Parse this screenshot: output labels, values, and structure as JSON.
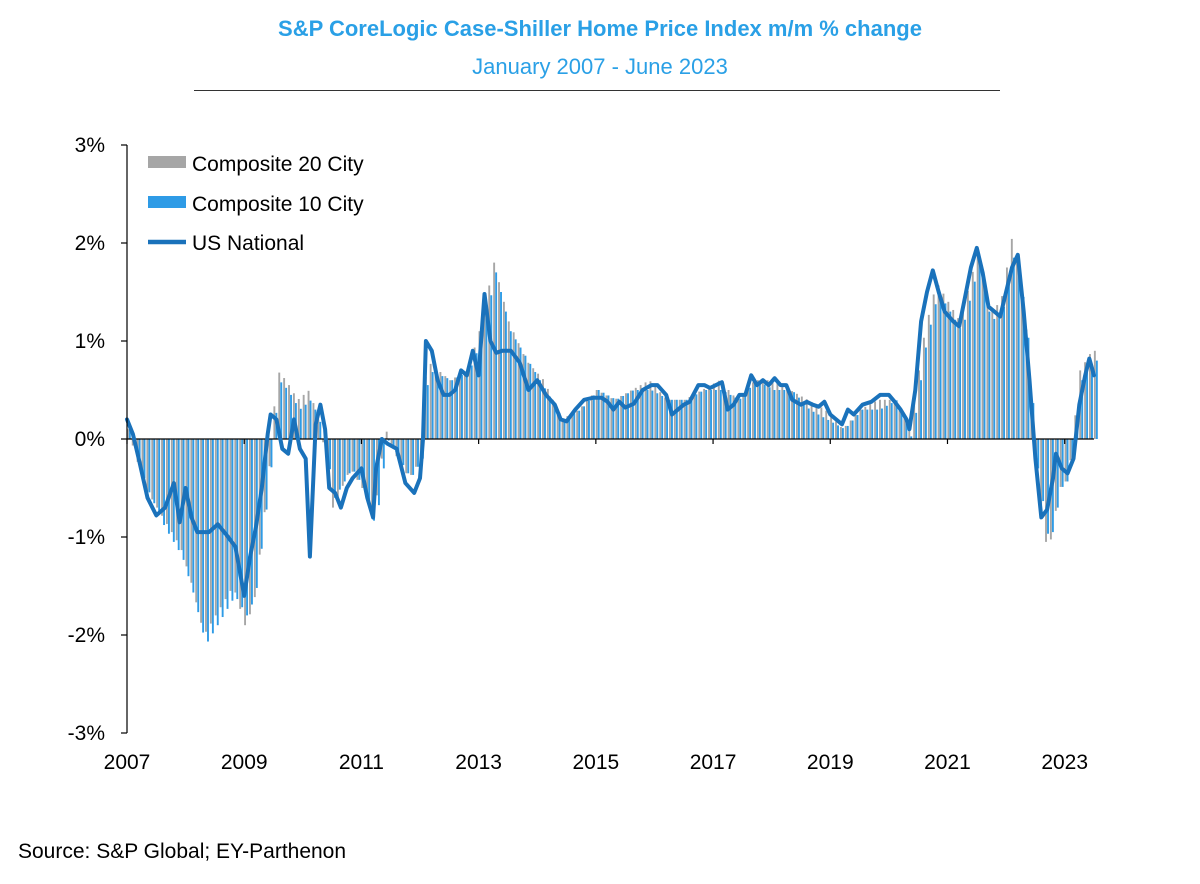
{
  "header": {
    "title": "S&P CoreLogic Case-Shiller Home Price Index m/m % change",
    "subtitle": "January 2007 - June 2023"
  },
  "footer": {
    "source": "Source: S&P Global; EY-Parthenon"
  },
  "colors": {
    "composite20": "#a6a6a6",
    "composite10": "#2e9be6",
    "national": "#1a72bb",
    "text": "#000000",
    "title": "#2aa0e6"
  },
  "chart_data": {
    "type": "bar",
    "ylim": [
      -3,
      3
    ],
    "xlim": [
      2007.0,
      2023.5
    ],
    "y_ticks": [
      {
        "value": 3,
        "label": "3%"
      },
      {
        "value": 2,
        "label": "2%"
      },
      {
        "value": 1,
        "label": "1%"
      },
      {
        "value": 0,
        "label": "0%"
      },
      {
        "value": -1,
        "label": "-1%"
      },
      {
        "value": -2,
        "label": "-2%"
      },
      {
        "value": -3,
        "label": "-3%"
      }
    ],
    "x_ticks": [
      {
        "value": 2007,
        "label": "2007"
      },
      {
        "value": 2009,
        "label": "2009"
      },
      {
        "value": 2011,
        "label": "2011"
      },
      {
        "value": 2013,
        "label": "2013"
      },
      {
        "value": 2015,
        "label": "2015"
      },
      {
        "value": 2017,
        "label": "2017"
      },
      {
        "value": 2019,
        "label": "2019"
      },
      {
        "value": 2021,
        "label": "2021"
      },
      {
        "value": 2023,
        "label": "2023"
      }
    ],
    "legend_position": "top-left",
    "series": [
      {
        "name": "Composite 20 City",
        "kind": "bar",
        "color": "#a6a6a6",
        "anchors": [
          [
            2007.0,
            0.1
          ],
          [
            2007.3,
            -0.5
          ],
          [
            2007.6,
            -0.8
          ],
          [
            2007.9,
            -1.1
          ],
          [
            2008.1,
            -1.5
          ],
          [
            2008.3,
            -2.0
          ],
          [
            2008.5,
            -1.8
          ],
          [
            2008.8,
            -1.5
          ],
          [
            2009.0,
            -1.9
          ],
          [
            2009.15,
            -1.7
          ],
          [
            2009.4,
            -0.4
          ],
          [
            2009.55,
            0.7
          ],
          [
            2009.7,
            0.6
          ],
          [
            2009.9,
            0.4
          ],
          [
            2010.1,
            0.5
          ],
          [
            2010.3,
            0.1
          ],
          [
            2010.5,
            -0.7
          ],
          [
            2010.8,
            -0.3
          ],
          [
            2011.0,
            -0.5
          ],
          [
            2011.2,
            -0.8
          ],
          [
            2011.4,
            0.1
          ],
          [
            2011.6,
            -0.2
          ],
          [
            2011.8,
            -0.4
          ],
          [
            2012.0,
            -0.2
          ],
          [
            2012.1,
            0.8
          ],
          [
            2012.5,
            0.6
          ],
          [
            2012.8,
            0.7
          ],
          [
            2013.0,
            1.1
          ],
          [
            2013.25,
            1.8
          ],
          [
            2013.5,
            1.2
          ],
          [
            2013.8,
            0.8
          ],
          [
            2014.1,
            0.6
          ],
          [
            2014.4,
            0.2
          ],
          [
            2014.7,
            0.3
          ],
          [
            2015.0,
            0.5
          ],
          [
            2015.3,
            0.4
          ],
          [
            2015.6,
            0.5
          ],
          [
            2015.9,
            0.6
          ],
          [
            2016.2,
            0.4
          ],
          [
            2016.5,
            0.4
          ],
          [
            2016.8,
            0.5
          ],
          [
            2017.1,
            0.6
          ],
          [
            2017.4,
            0.4
          ],
          [
            2017.7,
            0.6
          ],
          [
            2018.0,
            0.6
          ],
          [
            2018.3,
            0.5
          ],
          [
            2018.6,
            0.4
          ],
          [
            2018.9,
            0.3
          ],
          [
            2019.2,
            0.1
          ],
          [
            2019.5,
            0.3
          ],
          [
            2019.8,
            0.4
          ],
          [
            2020.1,
            0.4
          ],
          [
            2020.35,
            0.1
          ],
          [
            2020.6,
            1.1
          ],
          [
            2020.8,
            1.6
          ],
          [
            2021.0,
            1.4
          ],
          [
            2021.2,
            1.2
          ],
          [
            2021.5,
            1.9
          ],
          [
            2021.7,
            1.3
          ],
          [
            2021.9,
            1.4
          ],
          [
            2022.1,
            2.1
          ],
          [
            2022.3,
            1.4
          ],
          [
            2022.5,
            -0.3
          ],
          [
            2022.7,
            -1.2
          ],
          [
            2022.9,
            -0.5
          ],
          [
            2023.05,
            -0.4
          ],
          [
            2023.25,
            0.7
          ],
          [
            2023.45,
            0.9
          ]
        ]
      },
      {
        "name": "Composite 10 City",
        "kind": "bar",
        "color": "#2e9be6",
        "anchors": [
          [
            2007.0,
            0.1
          ],
          [
            2007.3,
            -0.5
          ],
          [
            2007.6,
            -0.9
          ],
          [
            2007.9,
            -1.2
          ],
          [
            2008.1,
            -1.6
          ],
          [
            2008.3,
            -2.1
          ],
          [
            2008.5,
            -1.9
          ],
          [
            2008.8,
            -1.6
          ],
          [
            2009.0,
            -1.8
          ],
          [
            2009.15,
            -1.6
          ],
          [
            2009.4,
            -0.4
          ],
          [
            2009.55,
            0.6
          ],
          [
            2009.7,
            0.5
          ],
          [
            2009.9,
            0.3
          ],
          [
            2010.1,
            0.4
          ],
          [
            2010.3,
            0.1
          ],
          [
            2010.5,
            -0.6
          ],
          [
            2010.8,
            -0.3
          ],
          [
            2011.0,
            -0.5
          ],
          [
            2011.2,
            -0.9
          ],
          [
            2011.4,
            0.0
          ],
          [
            2011.6,
            -0.2
          ],
          [
            2011.8,
            -0.4
          ],
          [
            2012.0,
            -0.2
          ],
          [
            2012.1,
            0.7
          ],
          [
            2012.5,
            0.6
          ],
          [
            2012.8,
            0.7
          ],
          [
            2013.0,
            1.0
          ],
          [
            2013.25,
            1.7
          ],
          [
            2013.5,
            1.1
          ],
          [
            2013.8,
            0.8
          ],
          [
            2014.1,
            0.5
          ],
          [
            2014.4,
            0.2
          ],
          [
            2014.7,
            0.3
          ],
          [
            2015.0,
            0.5
          ],
          [
            2015.3,
            0.4
          ],
          [
            2015.6,
            0.5
          ],
          [
            2015.9,
            0.5
          ],
          [
            2016.2,
            0.4
          ],
          [
            2016.5,
            0.4
          ],
          [
            2016.8,
            0.5
          ],
          [
            2017.1,
            0.5
          ],
          [
            2017.4,
            0.4
          ],
          [
            2017.7,
            0.6
          ],
          [
            2018.0,
            0.5
          ],
          [
            2018.3,
            0.5
          ],
          [
            2018.6,
            0.3
          ],
          [
            2018.9,
            0.2
          ],
          [
            2019.2,
            0.1
          ],
          [
            2019.5,
            0.3
          ],
          [
            2019.8,
            0.3
          ],
          [
            2020.1,
            0.4
          ],
          [
            2020.35,
            0.0
          ],
          [
            2020.6,
            1.0
          ],
          [
            2020.8,
            1.5
          ],
          [
            2021.0,
            1.3
          ],
          [
            2021.2,
            1.1
          ],
          [
            2021.5,
            1.8
          ],
          [
            2021.7,
            1.2
          ],
          [
            2021.9,
            1.3
          ],
          [
            2022.1,
            1.9
          ],
          [
            2022.3,
            1.3
          ],
          [
            2022.5,
            -0.3
          ],
          [
            2022.7,
            -1.1
          ],
          [
            2022.9,
            -0.5
          ],
          [
            2023.05,
            -0.4
          ],
          [
            2023.25,
            0.6
          ],
          [
            2023.45,
            0.8
          ]
        ]
      },
      {
        "name": "US National",
        "kind": "line",
        "color": "#1a72bb",
        "points": [
          [
            2007.0,
            0.2
          ],
          [
            2007.1,
            0.05
          ],
          [
            2007.2,
            -0.2
          ],
          [
            2007.35,
            -0.6
          ],
          [
            2007.5,
            -0.78
          ],
          [
            2007.65,
            -0.7
          ],
          [
            2007.8,
            -0.45
          ],
          [
            2007.9,
            -0.85
          ],
          [
            2008.0,
            -0.5
          ],
          [
            2008.1,
            -0.8
          ],
          [
            2008.2,
            -0.95
          ],
          [
            2008.4,
            -0.95
          ],
          [
            2008.55,
            -0.87
          ],
          [
            2008.7,
            -0.98
          ],
          [
            2008.85,
            -1.1
          ],
          [
            2009.0,
            -1.6
          ],
          [
            2009.1,
            -1.2
          ],
          [
            2009.2,
            -0.9
          ],
          [
            2009.3,
            -0.5
          ],
          [
            2009.4,
            0.05
          ],
          [
            2009.45,
            0.25
          ],
          [
            2009.55,
            0.2
          ],
          [
            2009.65,
            -0.1
          ],
          [
            2009.75,
            -0.15
          ],
          [
            2009.85,
            0.2
          ],
          [
            2009.95,
            -0.1
          ],
          [
            2010.05,
            -0.2
          ],
          [
            2010.12,
            -1.2
          ],
          [
            2010.22,
            0.15
          ],
          [
            2010.3,
            0.35
          ],
          [
            2010.38,
            0.1
          ],
          [
            2010.45,
            -0.5
          ],
          [
            2010.55,
            -0.55
          ],
          [
            2010.65,
            -0.7
          ],
          [
            2010.75,
            -0.5
          ],
          [
            2010.85,
            -0.4
          ],
          [
            2011.0,
            -0.3
          ],
          [
            2011.1,
            -0.6
          ],
          [
            2011.2,
            -0.8
          ],
          [
            2011.25,
            -0.3
          ],
          [
            2011.35,
            0.0
          ],
          [
            2011.45,
            -0.05
          ],
          [
            2011.6,
            -0.1
          ],
          [
            2011.75,
            -0.45
          ],
          [
            2011.9,
            -0.55
          ],
          [
            2012.0,
            -0.4
          ],
          [
            2012.05,
            0.0
          ],
          [
            2012.1,
            1.0
          ],
          [
            2012.2,
            0.9
          ],
          [
            2012.3,
            0.6
          ],
          [
            2012.4,
            0.45
          ],
          [
            2012.5,
            0.45
          ],
          [
            2012.6,
            0.5
          ],
          [
            2012.7,
            0.7
          ],
          [
            2012.8,
            0.65
          ],
          [
            2012.9,
            0.9
          ],
          [
            2013.0,
            0.65
          ],
          [
            2013.1,
            1.48
          ],
          [
            2013.2,
            1.0
          ],
          [
            2013.3,
            0.88
          ],
          [
            2013.4,
            0.9
          ],
          [
            2013.55,
            0.9
          ],
          [
            2013.7,
            0.78
          ],
          [
            2013.85,
            0.5
          ],
          [
            2014.0,
            0.6
          ],
          [
            2014.15,
            0.45
          ],
          [
            2014.3,
            0.35
          ],
          [
            2014.4,
            0.2
          ],
          [
            2014.5,
            0.18
          ],
          [
            2014.65,
            0.3
          ],
          [
            2014.8,
            0.4
          ],
          [
            2014.95,
            0.42
          ],
          [
            2015.1,
            0.42
          ],
          [
            2015.2,
            0.38
          ],
          [
            2015.3,
            0.3
          ],
          [
            2015.4,
            0.38
          ],
          [
            2015.5,
            0.32
          ],
          [
            2015.65,
            0.36
          ],
          [
            2015.8,
            0.5
          ],
          [
            2015.95,
            0.55
          ],
          [
            2016.05,
            0.55
          ],
          [
            2016.2,
            0.45
          ],
          [
            2016.3,
            0.25
          ],
          [
            2016.4,
            0.3
          ],
          [
            2016.5,
            0.35
          ],
          [
            2016.6,
            0.38
          ],
          [
            2016.75,
            0.55
          ],
          [
            2016.85,
            0.55
          ],
          [
            2016.95,
            0.52
          ],
          [
            2017.05,
            0.55
          ],
          [
            2017.15,
            0.58
          ],
          [
            2017.25,
            0.3
          ],
          [
            2017.35,
            0.35
          ],
          [
            2017.45,
            0.45
          ],
          [
            2017.55,
            0.45
          ],
          [
            2017.65,
            0.65
          ],
          [
            2017.75,
            0.55
          ],
          [
            2017.85,
            0.6
          ],
          [
            2017.95,
            0.55
          ],
          [
            2018.05,
            0.62
          ],
          [
            2018.15,
            0.55
          ],
          [
            2018.25,
            0.55
          ],
          [
            2018.35,
            0.4
          ],
          [
            2018.5,
            0.35
          ],
          [
            2018.6,
            0.38
          ],
          [
            2018.7,
            0.35
          ],
          [
            2018.8,
            0.33
          ],
          [
            2018.9,
            0.38
          ],
          [
            2019.0,
            0.25
          ],
          [
            2019.1,
            0.2
          ],
          [
            2019.2,
            0.15
          ],
          [
            2019.3,
            0.3
          ],
          [
            2019.4,
            0.25
          ],
          [
            2019.55,
            0.35
          ],
          [
            2019.7,
            0.38
          ],
          [
            2019.85,
            0.45
          ],
          [
            2020.0,
            0.45
          ],
          [
            2020.1,
            0.38
          ],
          [
            2020.2,
            0.3
          ],
          [
            2020.3,
            0.2
          ],
          [
            2020.35,
            0.1
          ],
          [
            2020.45,
            0.5
          ],
          [
            2020.55,
            1.2
          ],
          [
            2020.65,
            1.5
          ],
          [
            2020.75,
            1.72
          ],
          [
            2020.85,
            1.5
          ],
          [
            2020.95,
            1.3
          ],
          [
            2021.1,
            1.2
          ],
          [
            2021.2,
            1.15
          ],
          [
            2021.3,
            1.45
          ],
          [
            2021.4,
            1.75
          ],
          [
            2021.5,
            1.95
          ],
          [
            2021.6,
            1.7
          ],
          [
            2021.7,
            1.35
          ],
          [
            2021.8,
            1.3
          ],
          [
            2021.9,
            1.25
          ],
          [
            2022.0,
            1.5
          ],
          [
            2022.1,
            1.75
          ],
          [
            2022.2,
            1.88
          ],
          [
            2022.3,
            1.3
          ],
          [
            2022.4,
            0.6
          ],
          [
            2022.5,
            -0.2
          ],
          [
            2022.6,
            -0.8
          ],
          [
            2022.7,
            -0.72
          ],
          [
            2022.8,
            -0.4
          ],
          [
            2022.85,
            -0.15
          ],
          [
            2022.95,
            -0.3
          ],
          [
            2023.05,
            -0.35
          ],
          [
            2023.15,
            -0.2
          ],
          [
            2023.25,
            0.35
          ],
          [
            2023.35,
            0.65
          ],
          [
            2023.42,
            0.82
          ],
          [
            2023.5,
            0.65
          ]
        ]
      }
    ]
  }
}
